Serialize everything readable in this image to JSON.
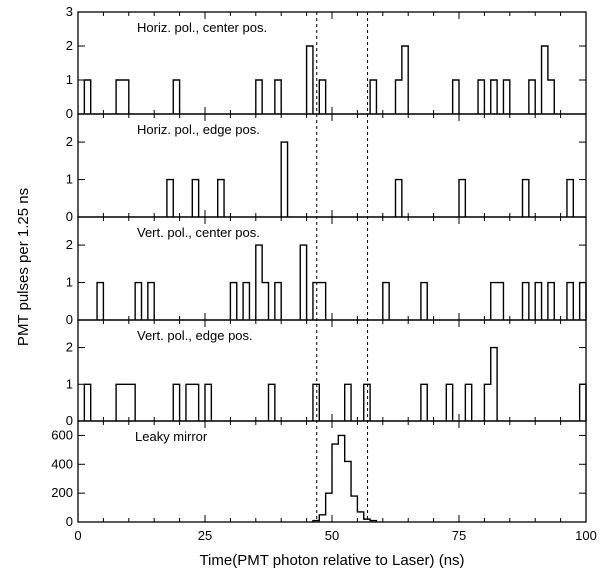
{
  "chart_data": {
    "type": "histogram-stack",
    "xlabel": "Time(PMT photon relative to Laser) (ns)",
    "ylabel": "PMT pulses per 1.25 ns",
    "xlim": [
      0,
      100
    ],
    "x_ticks": [
      0,
      25,
      50,
      75,
      100
    ],
    "bin_width_ns": 1.25,
    "dashed_lines_x": [
      47,
      57
    ],
    "panels": [
      {
        "title": "Horiz. pol., center pos.",
        "ylim": [
          0,
          3
        ],
        "y_ticks": [
          0,
          1,
          2,
          3
        ],
        "bins": [
          {
            "x": 1.25,
            "count": 1
          },
          {
            "x": 7.5,
            "count": 1
          },
          {
            "x": 8.75,
            "count": 1
          },
          {
            "x": 18.75,
            "count": 1
          },
          {
            "x": 35.0,
            "count": 1
          },
          {
            "x": 38.75,
            "count": 1
          },
          {
            "x": 45.0,
            "count": 2
          },
          {
            "x": 47.5,
            "count": 1
          },
          {
            "x": 57.5,
            "count": 1
          },
          {
            "x": 62.5,
            "count": 1
          },
          {
            "x": 63.75,
            "count": 2
          },
          {
            "x": 73.75,
            "count": 1
          },
          {
            "x": 78.75,
            "count": 1
          },
          {
            "x": 81.25,
            "count": 1
          },
          {
            "x": 83.75,
            "count": 1
          },
          {
            "x": 88.75,
            "count": 1
          },
          {
            "x": 91.25,
            "count": 2
          },
          {
            "x": 92.5,
            "count": 1
          }
        ]
      },
      {
        "title": "Horiz. pol., edge pos.",
        "ylim": [
          0,
          2.75
        ],
        "y_ticks": [
          0,
          1,
          2
        ],
        "bins": [
          {
            "x": 17.5,
            "count": 1
          },
          {
            "x": 22.5,
            "count": 1
          },
          {
            "x": 27.5,
            "count": 1
          },
          {
            "x": 40.0,
            "count": 2
          },
          {
            "x": 62.5,
            "count": 1
          },
          {
            "x": 75.0,
            "count": 1
          },
          {
            "x": 87.5,
            "count": 1
          },
          {
            "x": 96.25,
            "count": 1
          }
        ]
      },
      {
        "title": "Vert. pol., center pos.",
        "ylim": [
          0,
          2.75
        ],
        "y_ticks": [
          0,
          1,
          2
        ],
        "bins": [
          {
            "x": 3.75,
            "count": 1
          },
          {
            "x": 11.25,
            "count": 1
          },
          {
            "x": 13.75,
            "count": 1
          },
          {
            "x": 30.0,
            "count": 1
          },
          {
            "x": 32.5,
            "count": 1
          },
          {
            "x": 35.0,
            "count": 2
          },
          {
            "x": 36.25,
            "count": 1
          },
          {
            "x": 38.75,
            "count": 1
          },
          {
            "x": 43.75,
            "count": 2
          },
          {
            "x": 46.25,
            "count": 1
          },
          {
            "x": 47.5,
            "count": 1
          },
          {
            "x": 60.0,
            "count": 1
          },
          {
            "x": 67.5,
            "count": 1
          },
          {
            "x": 81.25,
            "count": 1
          },
          {
            "x": 82.5,
            "count": 1
          },
          {
            "x": 87.5,
            "count": 1
          },
          {
            "x": 90.0,
            "count": 1
          },
          {
            "x": 92.5,
            "count": 1
          },
          {
            "x": 96.25,
            "count": 1
          },
          {
            "x": 98.75,
            "count": 1
          }
        ]
      },
      {
        "title": "Vert. pol., edge pos.",
        "ylim": [
          0,
          2.75
        ],
        "y_ticks": [
          0,
          1,
          2
        ],
        "bins": [
          {
            "x": 1.25,
            "count": 1
          },
          {
            "x": 7.5,
            "count": 1
          },
          {
            "x": 8.75,
            "count": 1
          },
          {
            "x": 10.0,
            "count": 1
          },
          {
            "x": 18.75,
            "count": 1
          },
          {
            "x": 21.25,
            "count": 1
          },
          {
            "x": 22.5,
            "count": 1
          },
          {
            "x": 25.0,
            "count": 1
          },
          {
            "x": 37.5,
            "count": 1
          },
          {
            "x": 46.25,
            "count": 1
          },
          {
            "x": 52.5,
            "count": 1
          },
          {
            "x": 56.25,
            "count": 1
          },
          {
            "x": 67.5,
            "count": 1
          },
          {
            "x": 72.5,
            "count": 1
          },
          {
            "x": 76.25,
            "count": 1
          },
          {
            "x": 80.0,
            "count": 1
          },
          {
            "x": 81.25,
            "count": 2
          },
          {
            "x": 98.75,
            "count": 1
          }
        ]
      },
      {
        "title": "Leaky mirror",
        "ylim": [
          0,
          700
        ],
        "y_ticks": [
          0,
          200,
          400,
          600
        ],
        "bins": [
          {
            "x": 46.25,
            "count": 10
          },
          {
            "x": 47.5,
            "count": 50
          },
          {
            "x": 48.75,
            "count": 200
          },
          {
            "x": 50.0,
            "count": 540
          },
          {
            "x": 51.25,
            "count": 600
          },
          {
            "x": 52.5,
            "count": 420
          },
          {
            "x": 53.75,
            "count": 180
          },
          {
            "x": 55.0,
            "count": 70
          },
          {
            "x": 56.25,
            "count": 20
          },
          {
            "x": 57.5,
            "count": 10
          }
        ]
      }
    ]
  }
}
